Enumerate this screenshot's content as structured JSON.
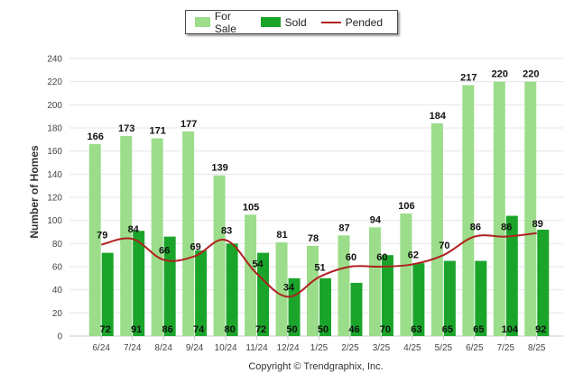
{
  "chart_data": {
    "type": "bar",
    "categories": [
      "6/24",
      "7/24",
      "8/24",
      "9/24",
      "10/24",
      "11/24",
      "12/24",
      "1/25",
      "2/25",
      "3/25",
      "4/25",
      "5/25",
      "6/25",
      "7/25",
      "8/25"
    ],
    "series": [
      {
        "name": "For Sale",
        "type": "bar",
        "color": "#9bdd8a",
        "values": [
          166,
          173,
          171,
          177,
          139,
          105,
          81,
          78,
          87,
          94,
          106,
          184,
          217,
          220,
          220
        ]
      },
      {
        "name": "Sold",
        "type": "bar",
        "color": "#1aa52a",
        "values": [
          72,
          91,
          86,
          74,
          80,
          72,
          50,
          50,
          46,
          70,
          63,
          65,
          65,
          104,
          92
        ]
      },
      {
        "name": "Pended",
        "type": "line",
        "color": "#b02020",
        "values": [
          79,
          84,
          66,
          69,
          83,
          54,
          34,
          51,
          60,
          60,
          62,
          70,
          86,
          86,
          89
        ]
      }
    ],
    "ylabel": "Number of Homes",
    "xlabel": "",
    "ylim": [
      0,
      240
    ],
    "yticks": [
      0,
      20,
      40,
      60,
      80,
      100,
      120,
      140,
      160,
      180,
      200,
      220,
      240
    ],
    "grid": true,
    "legend_position": "top-center"
  },
  "legend": {
    "for_sale": "For Sale",
    "sold": "Sold",
    "pended": "Pended"
  },
  "footer": "Copyright © Trendgraphix, Inc."
}
